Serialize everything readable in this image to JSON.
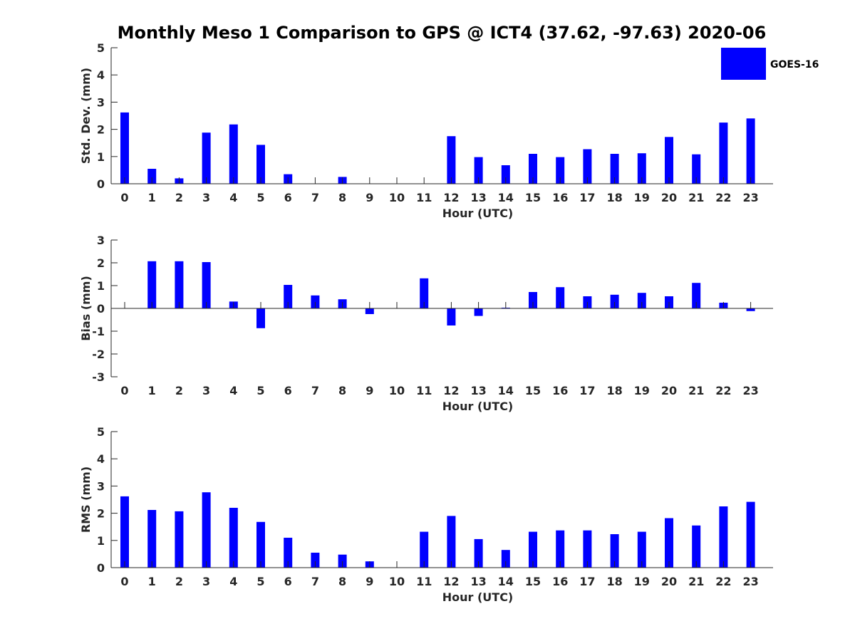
{
  "title": "Monthly Meso 1 Comparison to GPS @ ICT4 (37.62, -97.63) 2020-06",
  "legend": {
    "label": "GOES-16"
  },
  "colors": {
    "bar": "#0000ff",
    "axis": "#262626"
  },
  "chart_data": [
    {
      "type": "bar",
      "title": "Monthly Meso 1 Comparison to GPS @ ICT4 (37.62, -97.63) 2020-06",
      "xlabel": "Hour (UTC)",
      "ylabel": "Std. Dev. (mm)",
      "ylim": [
        0,
        5
      ],
      "yticks": [
        0,
        1,
        2,
        3,
        4,
        5
      ],
      "categories": [
        "0",
        "1",
        "2",
        "3",
        "4",
        "5",
        "6",
        "7",
        "8",
        "9",
        "10",
        "11",
        "12",
        "13",
        "14",
        "15",
        "16",
        "17",
        "18",
        "19",
        "20",
        "21",
        "22",
        "23"
      ],
      "series": [
        {
          "name": "GOES-16",
          "values": [
            2.62,
            0.55,
            0.2,
            1.88,
            2.18,
            1.43,
            0.35,
            0,
            0.25,
            0,
            0,
            0,
            1.75,
            0.98,
            0.68,
            1.1,
            0.98,
            1.27,
            1.1,
            1.12,
            1.72,
            1.08,
            2.25,
            2.4
          ]
        }
      ]
    },
    {
      "type": "bar",
      "xlabel": "Hour (UTC)",
      "ylabel": "Bias (mm)",
      "ylim": [
        -3,
        3
      ],
      "yticks": [
        -3,
        -2,
        -1,
        0,
        1,
        2,
        3
      ],
      "categories": [
        "0",
        "1",
        "2",
        "3",
        "4",
        "5",
        "6",
        "7",
        "8",
        "9",
        "10",
        "11",
        "12",
        "13",
        "14",
        "15",
        "16",
        "17",
        "18",
        "19",
        "20",
        "21",
        "22",
        "23"
      ],
      "series": [
        {
          "name": "GOES-16",
          "values": [
            0,
            2.07,
            2.07,
            2.03,
            0.3,
            -0.87,
            1.03,
            0.57,
            0.4,
            -0.25,
            0,
            1.32,
            -0.75,
            -0.33,
            0.03,
            0.72,
            0.93,
            0.53,
            0.6,
            0.68,
            0.53,
            1.12,
            0.25,
            -0.12
          ]
        }
      ]
    },
    {
      "type": "bar",
      "xlabel": "Hour (UTC)",
      "ylabel": "RMS (mm)",
      "ylim": [
        0,
        5
      ],
      "yticks": [
        0,
        1,
        2,
        3,
        4,
        5
      ],
      "categories": [
        "0",
        "1",
        "2",
        "3",
        "4",
        "5",
        "6",
        "7",
        "8",
        "9",
        "10",
        "11",
        "12",
        "13",
        "14",
        "15",
        "16",
        "17",
        "18",
        "19",
        "20",
        "21",
        "22",
        "23"
      ],
      "series": [
        {
          "name": "GOES-16",
          "values": [
            2.62,
            2.12,
            2.07,
            2.77,
            2.2,
            1.68,
            1.1,
            0.55,
            0.48,
            0.23,
            0,
            1.32,
            1.9,
            1.05,
            0.65,
            1.32,
            1.37,
            1.37,
            1.23,
            1.32,
            1.82,
            1.55,
            2.25,
            2.42
          ]
        }
      ]
    }
  ]
}
